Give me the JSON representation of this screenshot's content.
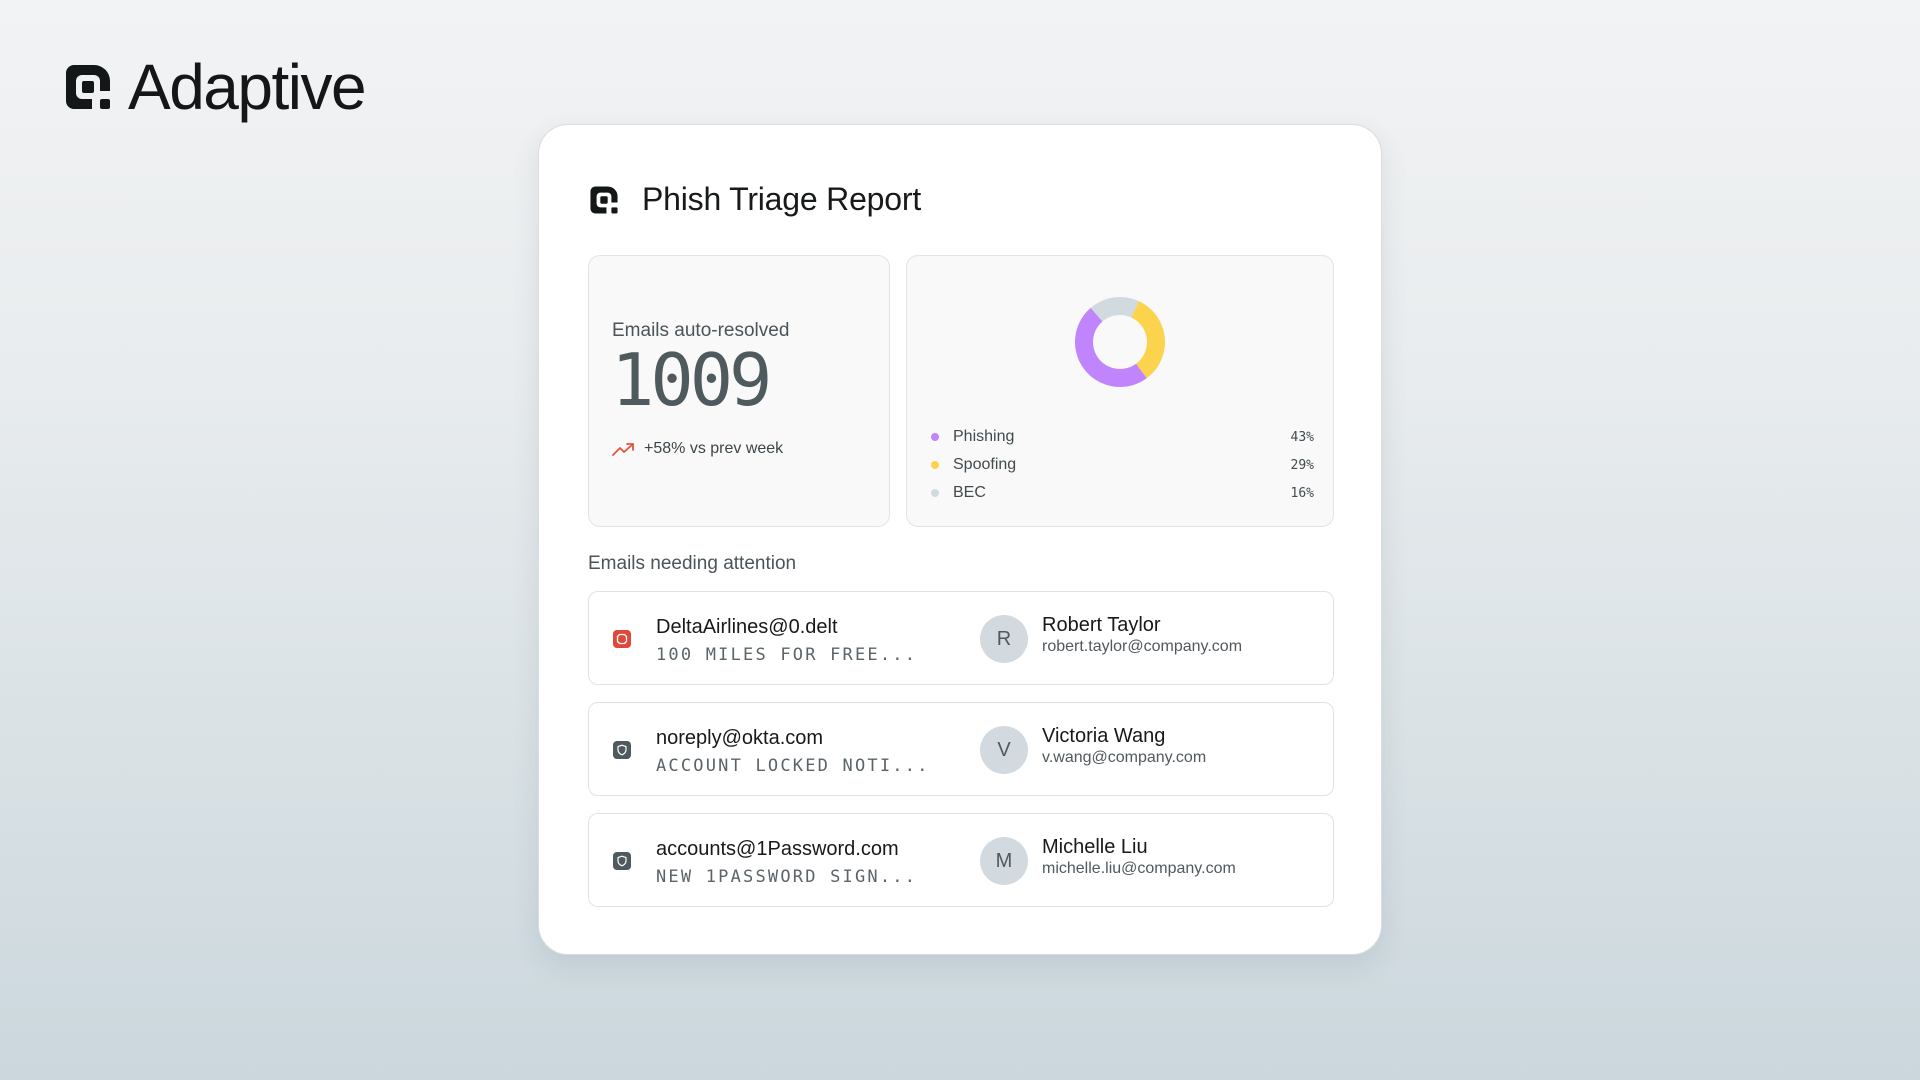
{
  "brand": {
    "name": "Adaptive",
    "icon": "adaptive-logo-icon"
  },
  "report": {
    "title": "Phish Triage Report",
    "icon": "adaptive-logo-icon"
  },
  "stats": {
    "label": "Emails auto-resolved",
    "value": "1009",
    "trend_text": "+58% vs prev week",
    "trend_icon": "trending-up-icon",
    "trend_color": "#e5533d"
  },
  "chart_data": {
    "type": "pie",
    "title": "",
    "categories": [
      "Phishing",
      "Spoofing",
      "BEC"
    ],
    "values": [
      43,
      29,
      16
    ],
    "labels": [
      "43%",
      "29%",
      "16%"
    ],
    "colors": [
      "#c084fc",
      "#fcd34d",
      "#d1dadf"
    ],
    "legend_position": "bottom"
  },
  "attention": {
    "title": "Emails needing attention",
    "emails": [
      {
        "sender": "DeltaAirlines@0.delt",
        "subject": "100 MILES FOR FREE...",
        "icon": "alert-octagon-icon",
        "icon_color": "#e0483c",
        "recipient_initial": "R",
        "recipient_name": "Robert Taylor",
        "recipient_email": "robert.taylor@company.com"
      },
      {
        "sender": "noreply@okta.com",
        "subject": "ACCOUNT LOCKED NOTI...",
        "icon": "shield-icon",
        "icon_color": "#4e5a5e",
        "recipient_initial": "V",
        "recipient_name": "Victoria Wang",
        "recipient_email": "v.wang@company.com"
      },
      {
        "sender": "accounts@1Password.com",
        "subject": "NEW 1PASSWORD SIGN...",
        "icon": "shield-icon",
        "icon_color": "#4e5a5e",
        "recipient_initial": "M",
        "recipient_name": "Michelle Liu",
        "recipient_email": "michelle.liu@company.com"
      }
    ]
  }
}
